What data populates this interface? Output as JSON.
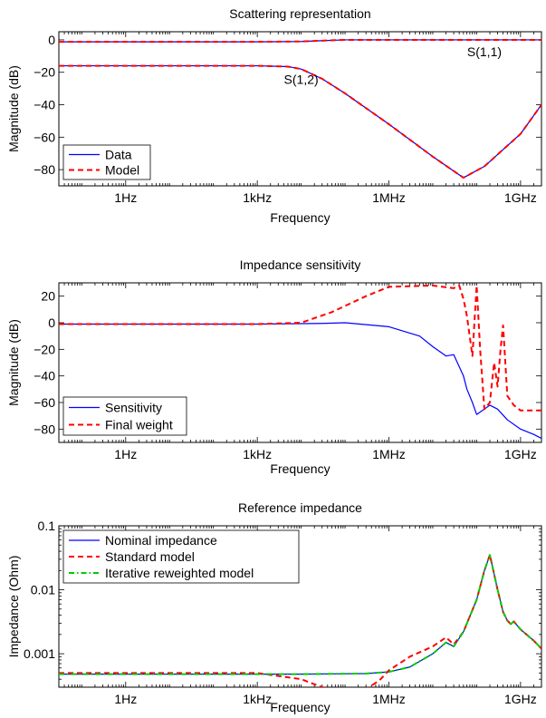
{
  "chart_data": [
    {
      "type": "line",
      "title": "Scattering representation",
      "xlabel": "Frequency",
      "ylabel": "Magnitude (dB)",
      "x_scale": "log",
      "xlim": [
        0.03,
        3000000000
      ],
      "ylim": [
        -90,
        5
      ],
      "x_ticks": [
        {
          "value": 1,
          "label": "1Hz"
        },
        {
          "value": 1000,
          "label": "1kHz"
        },
        {
          "value": 1000000,
          "label": "1MHz"
        },
        {
          "value": 1000000000,
          "label": "1GHz"
        }
      ],
      "y_ticks": [
        {
          "value": 0,
          "label": "0"
        },
        {
          "value": -20,
          "label": "−20"
        },
        {
          "value": -40,
          "label": "−40"
        },
        {
          "value": -60,
          "label": "−60"
        },
        {
          "value": -80,
          "label": "−80"
        }
      ],
      "legend": {
        "position": "bottom-left",
        "entries": [
          "Data",
          "Model"
        ]
      },
      "annotations": [
        {
          "text": "S(1,1)",
          "x": 150000000,
          "y": -10
        },
        {
          "text": "S(1,2)",
          "x": 10000,
          "y": -27
        }
      ],
      "series": [
        {
          "name": "Data",
          "group": "S(1,1)",
          "color": "#0000ff",
          "style": "solid",
          "x": [
            0.03,
            1000,
            10000,
            30000,
            100000,
            300000,
            3000000000
          ],
          "y": [
            -1.2,
            -1.2,
            -1.0,
            -0.5,
            0,
            0,
            0
          ]
        },
        {
          "name": "Model",
          "group": "S(1,1)",
          "color": "#ff0000",
          "style": "dashed",
          "x": [
            0.03,
            1000,
            10000,
            30000,
            100000,
            300000,
            3000000000
          ],
          "y": [
            -1.2,
            -1.2,
            -1.0,
            -0.5,
            0,
            0,
            0
          ]
        },
        {
          "name": "Data",
          "group": "S(1,2)",
          "color": "#0000ff",
          "style": "solid",
          "x": [
            0.03,
            1000,
            5000,
            10000,
            30000,
            100000,
            1000000,
            10000000,
            50000000,
            150000000,
            1000000000,
            3000000000
          ],
          "y": [
            -16,
            -16,
            -16.5,
            -18,
            -24,
            -33,
            -52,
            -72,
            -85,
            -78,
            -58,
            -40
          ]
        },
        {
          "name": "Model",
          "group": "S(1,2)",
          "color": "#ff0000",
          "style": "dashed",
          "x": [
            0.03,
            1000,
            5000,
            10000,
            30000,
            100000,
            1000000,
            10000000,
            50000000,
            150000000,
            1000000000,
            3000000000
          ],
          "y": [
            -16,
            -16,
            -16.5,
            -18,
            -24,
            -33,
            -52,
            -72,
            -85,
            -78,
            -58,
            -40
          ]
        }
      ]
    },
    {
      "type": "line",
      "title": "Impedance sensitivity",
      "xlabel": "Frequency",
      "ylabel": "Magnitude (dB)",
      "x_scale": "log",
      "xlim": [
        0.03,
        3000000000
      ],
      "ylim": [
        -90,
        30
      ],
      "x_ticks": [
        {
          "value": 1,
          "label": "1Hz"
        },
        {
          "value": 1000,
          "label": "1kHz"
        },
        {
          "value": 1000000,
          "label": "1MHz"
        },
        {
          "value": 1000000000,
          "label": "1GHz"
        }
      ],
      "y_ticks": [
        {
          "value": 20,
          "label": "20"
        },
        {
          "value": 0,
          "label": "0"
        },
        {
          "value": -20,
          "label": "−20"
        },
        {
          "value": -40,
          "label": "−40"
        },
        {
          "value": -60,
          "label": "−60"
        },
        {
          "value": -80,
          "label": "−80"
        }
      ],
      "legend": {
        "position": "bottom-left",
        "entries": [
          "Sensitivity",
          "Final weight"
        ]
      },
      "series": [
        {
          "name": "Sensitivity",
          "color": "#0000ff",
          "style": "solid",
          "x": [
            0.03,
            1000,
            30000,
            100000,
            1000000,
            5000000,
            10000000,
            20000000,
            30000000,
            50000000,
            60000000,
            80000000,
            100000000,
            200000000,
            300000000,
            500000000,
            1000000000,
            2000000000,
            3000000000
          ],
          "y": [
            -1,
            -1,
            -0.5,
            0,
            -3,
            -10,
            -18,
            -25,
            -24,
            -40,
            -50,
            -60,
            -69,
            -62,
            -65,
            -73,
            -80,
            -84,
            -87
          ]
        },
        {
          "name": "Final weight",
          "color": "#ff0000",
          "style": "dashed",
          "x": [
            0.03,
            1000,
            10000,
            50000,
            300000,
            1000000,
            10000000,
            30000000,
            40000000,
            50000000,
            60000000,
            80000000,
            100000000,
            120000000,
            150000000,
            200000000,
            250000000,
            300000000,
            350000000,
            400000000,
            500000000,
            700000000,
            1000000000,
            3000000000
          ],
          "y": [
            -1,
            -1,
            0,
            8,
            20,
            27,
            28,
            26,
            28,
            18,
            5,
            -25,
            28,
            -20,
            -65,
            -60,
            -30,
            -48,
            -20,
            -2,
            -55,
            -62,
            -66,
            -66
          ]
        }
      ]
    },
    {
      "type": "line",
      "title": "Reference impedance",
      "xlabel": "Frequency",
      "ylabel": "Impedance (Ohm)",
      "x_scale": "log",
      "y_scale": "log",
      "xlim": [
        0.03,
        3000000000
      ],
      "ylim": [
        0.0003,
        0.1
      ],
      "x_ticks": [
        {
          "value": 1,
          "label": "1Hz"
        },
        {
          "value": 1000,
          "label": "1kHz"
        },
        {
          "value": 1000000,
          "label": "1MHz"
        },
        {
          "value": 1000000000,
          "label": "1GHz"
        }
      ],
      "y_ticks": [
        {
          "value": 0.1,
          "label": "0.1"
        },
        {
          "value": 0.01,
          "label": "0.01"
        },
        {
          "value": 0.001,
          "label": "0.001"
        }
      ],
      "legend": {
        "position": "top-left",
        "entries": [
          "Nominal impedance",
          "Standard model",
          "Iterative reweighted model"
        ]
      },
      "series": [
        {
          "name": "Nominal impedance",
          "color": "#0000ff",
          "style": "solid",
          "x": [
            0.03,
            10000,
            300000,
            1000000,
            3000000,
            10000000,
            20000000,
            30000000,
            50000000,
            100000000,
            150000000,
            200000000,
            300000000,
            400000000,
            500000000,
            600000000,
            700000000,
            1000000000,
            2000000000,
            3000000000
          ],
          "y": [
            0.00048,
            0.00048,
            0.00049,
            0.00052,
            0.00062,
            0.001,
            0.0015,
            0.0013,
            0.0022,
            0.007,
            0.02,
            0.035,
            0.01,
            0.0045,
            0.0033,
            0.0029,
            0.0032,
            0.0024,
            0.0016,
            0.0012
          ]
        },
        {
          "name": "Standard model",
          "color": "#ff0000",
          "style": "dashed",
          "x": [
            0.03,
            1000,
            10000,
            30000,
            100000,
            300000,
            600000,
            1000000,
            3000000,
            10000000,
            20000000,
            30000000,
            50000000,
            100000000,
            150000000,
            200000000,
            300000000,
            400000000,
            500000000,
            600000000,
            700000000,
            1000000000,
            2000000000,
            3000000000
          ],
          "y": [
            0.0005,
            0.0005,
            0.0004,
            0.0003,
            0.00026,
            0.00028,
            0.00038,
            0.00055,
            0.0009,
            0.0013,
            0.0018,
            0.0014,
            0.0022,
            0.007,
            0.02,
            0.035,
            0.01,
            0.0045,
            0.0033,
            0.0029,
            0.0032,
            0.0024,
            0.0016,
            0.0012
          ]
        },
        {
          "name": "Iterative reweighted model",
          "color": "#00cc00",
          "style": "dashdot",
          "x": [
            0.03,
            10000,
            300000,
            1000000,
            3000000,
            10000000,
            20000000,
            30000000,
            50000000,
            100000000,
            150000000,
            200000000,
            300000000,
            400000000,
            500000000,
            600000000,
            700000000,
            1000000000,
            2000000000,
            3000000000
          ],
          "y": [
            0.00048,
            0.00048,
            0.00049,
            0.00052,
            0.00062,
            0.001,
            0.0015,
            0.0013,
            0.0022,
            0.007,
            0.02,
            0.035,
            0.01,
            0.0045,
            0.0033,
            0.0029,
            0.0032,
            0.0024,
            0.0016,
            0.0012
          ]
        }
      ]
    }
  ]
}
